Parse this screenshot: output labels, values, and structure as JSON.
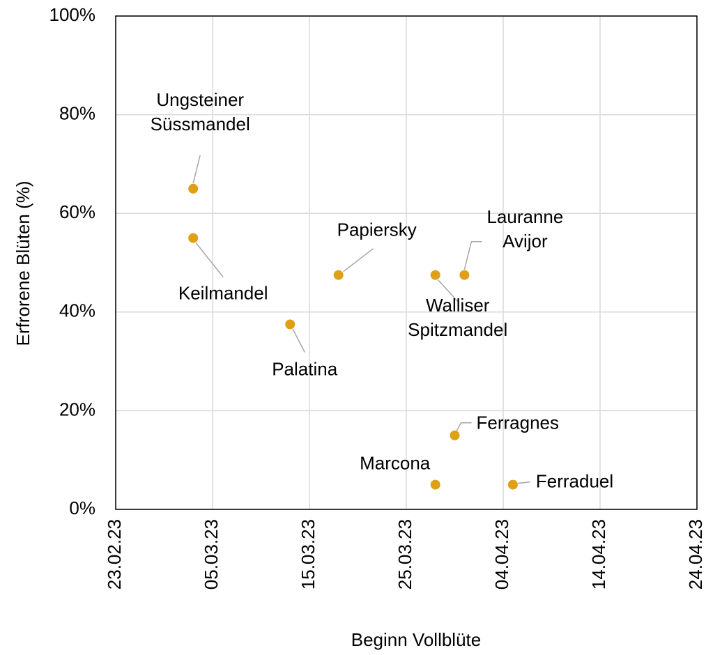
{
  "chart_data": {
    "type": "scatter",
    "x_label": "Beginn Vollblüte",
    "y_label": "Erfrorene Blüten (%)",
    "x": [
      "03.03.23",
      "03.03.23",
      "13.03.23",
      "18.03.23",
      "28.03.23",
      "31.03.23",
      "30.03.23",
      "28.03.23",
      "05.04.23"
    ],
    "values": [
      65,
      55,
      37.5,
      47.5,
      47.5,
      47.5,
      15,
      5,
      5
    ],
    "point_labels": [
      [
        "Ungsteiner",
        "Süssmandel"
      ],
      [
        "Keilmandel"
      ],
      [
        "Palatina"
      ],
      [
        "Papiersky"
      ],
      [
        "Walliser",
        "Spitzmandel"
      ],
      [
        "Lauranne",
        "Avijor"
      ],
      [
        "Ferragnes"
      ],
      [
        "Marcona"
      ],
      [
        "Ferraduel"
      ]
    ],
    "color": "#dfa015",
    "xlim": [
      "23.02.23",
      "24.04.23"
    ],
    "xticks": [
      "23.02.23",
      "05.03.23",
      "15.03.23",
      "25.03.23",
      "04.04.23",
      "14.04.23",
      "24.04.23"
    ],
    "ylim": [
      0,
      100
    ],
    "yticks": [
      {
        "value": 0,
        "label": "0%"
      },
      {
        "value": 20,
        "label": "20%"
      },
      {
        "value": 40,
        "label": "40%"
      },
      {
        "value": 60,
        "label": "60%"
      },
      {
        "value": 80,
        "label": "80%"
      },
      {
        "value": 100,
        "label": "100%"
      }
    ],
    "grid": true
  }
}
